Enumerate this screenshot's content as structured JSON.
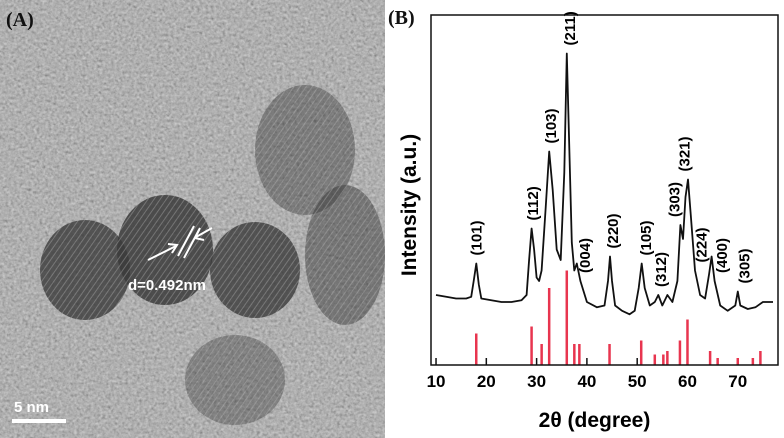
{
  "panel_a": {
    "label": "(A)",
    "annotation": "d=0.492nm",
    "scale_bar": "5 nm"
  },
  "chart_data": {
    "type": "line",
    "title": "(B)",
    "xlabel": "2θ (degree)",
    "ylabel": "Intensity (a.u.)",
    "xlim": [
      9,
      78
    ],
    "ylim": [
      0,
      100
    ],
    "xticks": [
      10,
      20,
      30,
      40,
      50,
      60,
      70
    ],
    "x": [
      10,
      12,
      14,
      16,
      17,
      17.5,
      18,
      18.5,
      19,
      21,
      23,
      25,
      27,
      28,
      28.5,
      29,
      29.5,
      30,
      30.5,
      31,
      31.8,
      32.5,
      33.2,
      34,
      34.8,
      35.5,
      36,
      36.5,
      37,
      37.5,
      38,
      38.7,
      40,
      42,
      43.5,
      44.2,
      44.6,
      45,
      45.6,
      47,
      48.5,
      49.5,
      50.3,
      50.9,
      51.5,
      52.5,
      53.5,
      54.2,
      55,
      56,
      57,
      58,
      58.6,
      59.1,
      59.6,
      60.1,
      60.7,
      61.5,
      62.5,
      63.5,
      64.3,
      64.8,
      65.4,
      66.5,
      68,
      69.5,
      70,
      70.5,
      72,
      73.5,
      75,
      77
    ],
    "series": [
      {
        "color": "#111111",
        "values": [
          20,
          19.5,
          19,
          19,
          19.5,
          24,
          29,
          23,
          19,
          18.5,
          18,
          18,
          18.5,
          20,
          30,
          39,
          33,
          25,
          24,
          27,
          45,
          61,
          50,
          33,
          30,
          55,
          89,
          62,
          35,
          27,
          29,
          24,
          18,
          16.5,
          17,
          24,
          31,
          24,
          17,
          15.5,
          14.5,
          15.5,
          22,
          29,
          22,
          17,
          18,
          20,
          17,
          20,
          18,
          24,
          40,
          36,
          48,
          53,
          42,
          27,
          20,
          19,
          26,
          31,
          24,
          17,
          15.5,
          17,
          21,
          17,
          16,
          16.5,
          18,
          18
        ]
      }
    ],
    "reference": {
      "color": "#e8354f",
      "x": [
        18,
        29,
        31,
        32.5,
        36,
        37.5,
        38.5,
        44.5,
        50.8,
        53.5,
        55.2,
        56,
        58.5,
        60,
        64.5,
        66,
        70,
        73,
        74.5
      ],
      "values": [
        9,
        11,
        6,
        22,
        27,
        6,
        6,
        6,
        7,
        3,
        3,
        4,
        7,
        13,
        4,
        2,
        2,
        2,
        4
      ]
    },
    "peak_labels": [
      {
        "label": "(101)",
        "x": 18
      },
      {
        "label": "(112)",
        "x": 29.3
      },
      {
        "label": "(103)",
        "x": 32.9
      },
      {
        "label": "(211)",
        "x": 36.6
      },
      {
        "label": "(004)",
        "x": 39.6
      },
      {
        "label": "(220)",
        "x": 45.2
      },
      {
        "label": "(105)",
        "x": 51.8
      },
      {
        "label": "(312)",
        "x": 54.7
      },
      {
        "label": "(303)",
        "x": 57.4
      },
      {
        "label": "(321)",
        "x": 59.4
      },
      {
        "label": "(224)",
        "x": 62.8
      },
      {
        "label": "(400)",
        "x": 66.9
      },
      {
        "label": "(305)",
        "x": 71.3
      }
    ]
  }
}
